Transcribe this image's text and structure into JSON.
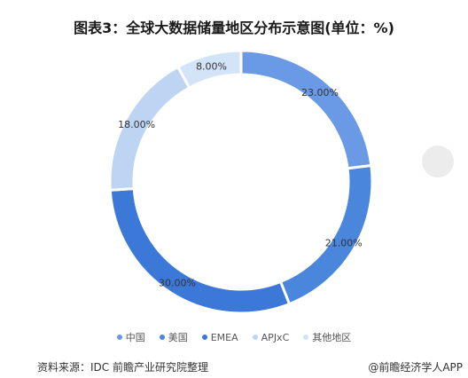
{
  "title": "图表3：全球大数据储量地区分布示意图(单位：%)",
  "source": "资料来源：IDC 前瞻产业研究院整理",
  "footer_credit": "@前瞻经济学人APP",
  "chart_data": {
    "type": "pie",
    "title": "图表3：全球大数据储量地区分布示意图(单位：%)",
    "unit": "%",
    "legend_position": "bottom",
    "categories": [
      "中国",
      "美国",
      "EMEA",
      "APJxC",
      "其他地区"
    ],
    "values": [
      23.0,
      21.0,
      30.0,
      18.0,
      8.0
    ],
    "labels": [
      "23.00%",
      "21.00%",
      "30.00%",
      "18.00%",
      "8.00%"
    ],
    "colors": [
      "#6a9ae6",
      "#4a86dc",
      "#3c78d8",
      "#bdd5f3",
      "#d3e3f8"
    ]
  }
}
